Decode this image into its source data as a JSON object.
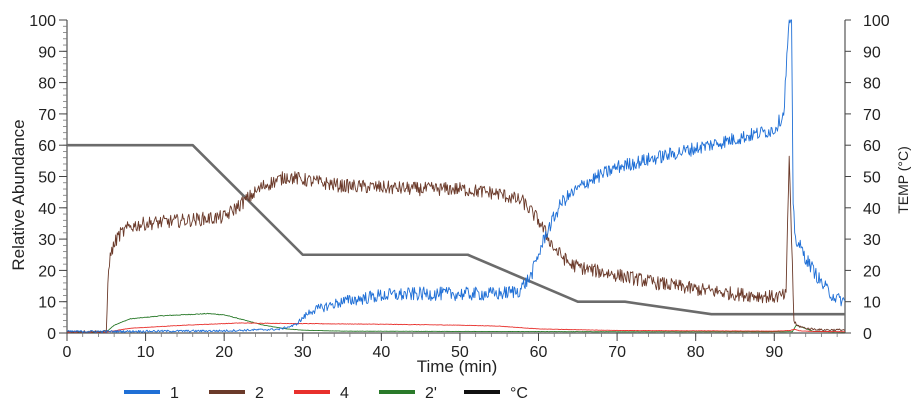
{
  "chart_data": {
    "type": "line",
    "xlabel": "Time (min)",
    "ylabel": "Relative Abundance",
    "y2label": "TEMP (°C)",
    "xlim": [
      0,
      99
    ],
    "ylim": [
      0,
      100
    ],
    "y2lim": [
      0,
      100
    ],
    "xticks": [
      0,
      10,
      20,
      30,
      40,
      50,
      60,
      70,
      80,
      90
    ],
    "yticks": [
      0,
      10,
      20,
      30,
      40,
      50,
      60,
      70,
      80,
      90,
      100
    ],
    "y2ticks": [
      0,
      10,
      20,
      30,
      40,
      50,
      60,
      70,
      80,
      90,
      100
    ],
    "grid": false,
    "legend_position": "bottom-left",
    "series": [
      {
        "name": "1",
        "color": "#1f6fd6",
        "axis": "left",
        "noise": 2.2,
        "x": [
          0,
          5,
          20,
          27,
          29,
          31,
          35,
          40,
          45,
          50,
          55,
          57.5,
          59,
          61,
          63,
          66,
          70,
          75,
          80,
          85,
          90,
          91.2,
          91.6,
          91.9,
          92.2,
          92.4,
          92.7,
          93.2,
          94,
          95,
          96,
          97,
          98,
          99
        ],
        "y": [
          0.5,
          0.5,
          0.7,
          1.2,
          2.5,
          7,
          10,
          12,
          12.5,
          12.5,
          12.5,
          13.5,
          18,
          32,
          42,
          48,
          53,
          56,
          59,
          62,
          65,
          70,
          88,
          100,
          100,
          40,
          30,
          28,
          24,
          20,
          16,
          13,
          11,
          10
        ]
      },
      {
        "name": "2",
        "color": "#6b3a2a",
        "axis": "left",
        "noise": 2.2,
        "x": [
          0,
          5,
          5.3,
          5.8,
          6.5,
          8,
          10,
          15,
          20,
          22,
          25,
          28,
          30,
          35,
          40,
          45,
          50,
          55,
          58,
          60,
          62,
          64,
          66,
          70,
          75,
          80,
          85,
          90,
          91.5,
          91.9,
          92.2,
          92.5,
          92.8,
          94,
          96,
          99
        ],
        "y": [
          0.5,
          0.5,
          22,
          27,
          31,
          34,
          35,
          36,
          37,
          41,
          47,
          50,
          49,
          47,
          46.5,
          46,
          46,
          44.5,
          42,
          36,
          27,
          22,
          20.5,
          18.5,
          16,
          14,
          12.5,
          11.5,
          12,
          57,
          30,
          4,
          2.5,
          1.5,
          1,
          1
        ]
      },
      {
        "name": "4",
        "color": "#e8302c",
        "axis": "left",
        "noise": 0.3,
        "x": [
          0,
          5,
          8,
          15,
          22,
          30,
          40,
          50,
          55,
          60,
          70,
          80,
          90,
          92,
          92.6,
          93.2,
          95,
          99
        ],
        "y": [
          0.3,
          0.3,
          1.5,
          2.5,
          3.2,
          3.0,
          2.8,
          2.5,
          2.2,
          1.3,
          0.8,
          0.7,
          0.6,
          0.8,
          1.2,
          0.7,
          0.5,
          0.4
        ]
      },
      {
        "name": "2'",
        "color": "#2a7a2a",
        "axis": "left",
        "noise": 0.25,
        "x": [
          0,
          5,
          6,
          8,
          12,
          18,
          20,
          22,
          25,
          28,
          30,
          35,
          50,
          70,
          90,
          92.3,
          92.8,
          95,
          99
        ],
        "y": [
          0.3,
          0.3,
          2.5,
          4.5,
          5.5,
          6.2,
          5.8,
          4.5,
          2.5,
          1.3,
          0.9,
          0.6,
          0.5,
          0.4,
          0.4,
          0.4,
          2.5,
          0.5,
          0.3
        ]
      },
      {
        "name": "°C",
        "color": "#6b6b6b",
        "legend_color": "#111111",
        "axis": "right",
        "noise": 0,
        "x": [
          0,
          16,
          30,
          51,
          65,
          71,
          82,
          99
        ],
        "y": [
          60,
          60,
          25,
          25,
          10,
          10,
          6,
          6
        ]
      }
    ]
  }
}
